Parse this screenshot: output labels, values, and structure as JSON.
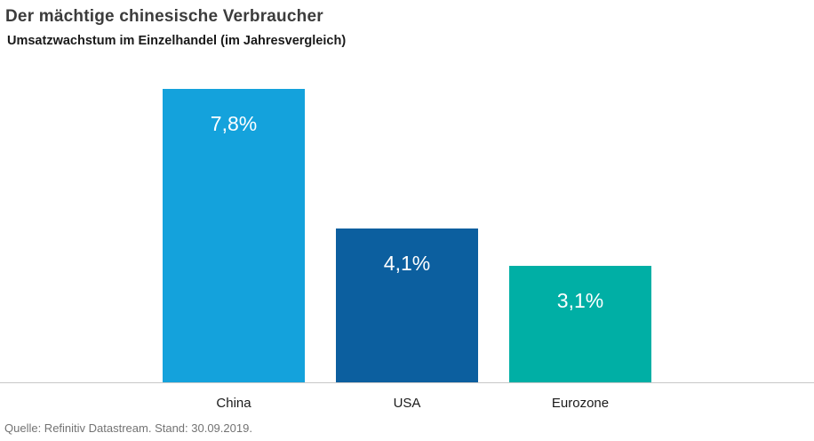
{
  "header": {
    "title": "Der mächtige chinesische Verbraucher",
    "subtitle": "Umsatzwachstum im Einzelhandel (im Jahresvergleich)"
  },
  "footer": {
    "source": "Quelle: Refinitiv Datastream. Stand: 30.09.2019."
  },
  "chart_data": {
    "type": "bar",
    "title": "Der mächtige chinesische Verbraucher",
    "subtitle": "Umsatzwachstum im Einzelhandel (im Jahresvergleich)",
    "categories": [
      "China",
      "USA",
      "Eurozone"
    ],
    "values": [
      7.8,
      4.1,
      3.1
    ],
    "value_labels": [
      "7,8%",
      "4,1%",
      "3,1%"
    ],
    "bar_colors": [
      "#14a2dc",
      "#0c5f9f",
      "#00afa5"
    ],
    "ylim": [
      0,
      7.8
    ],
    "grid": false,
    "legend": "none",
    "baseline_color": "#c8c8c8",
    "source": "Quelle: Refinitiv Datastream. Stand: 30.09.2019."
  }
}
